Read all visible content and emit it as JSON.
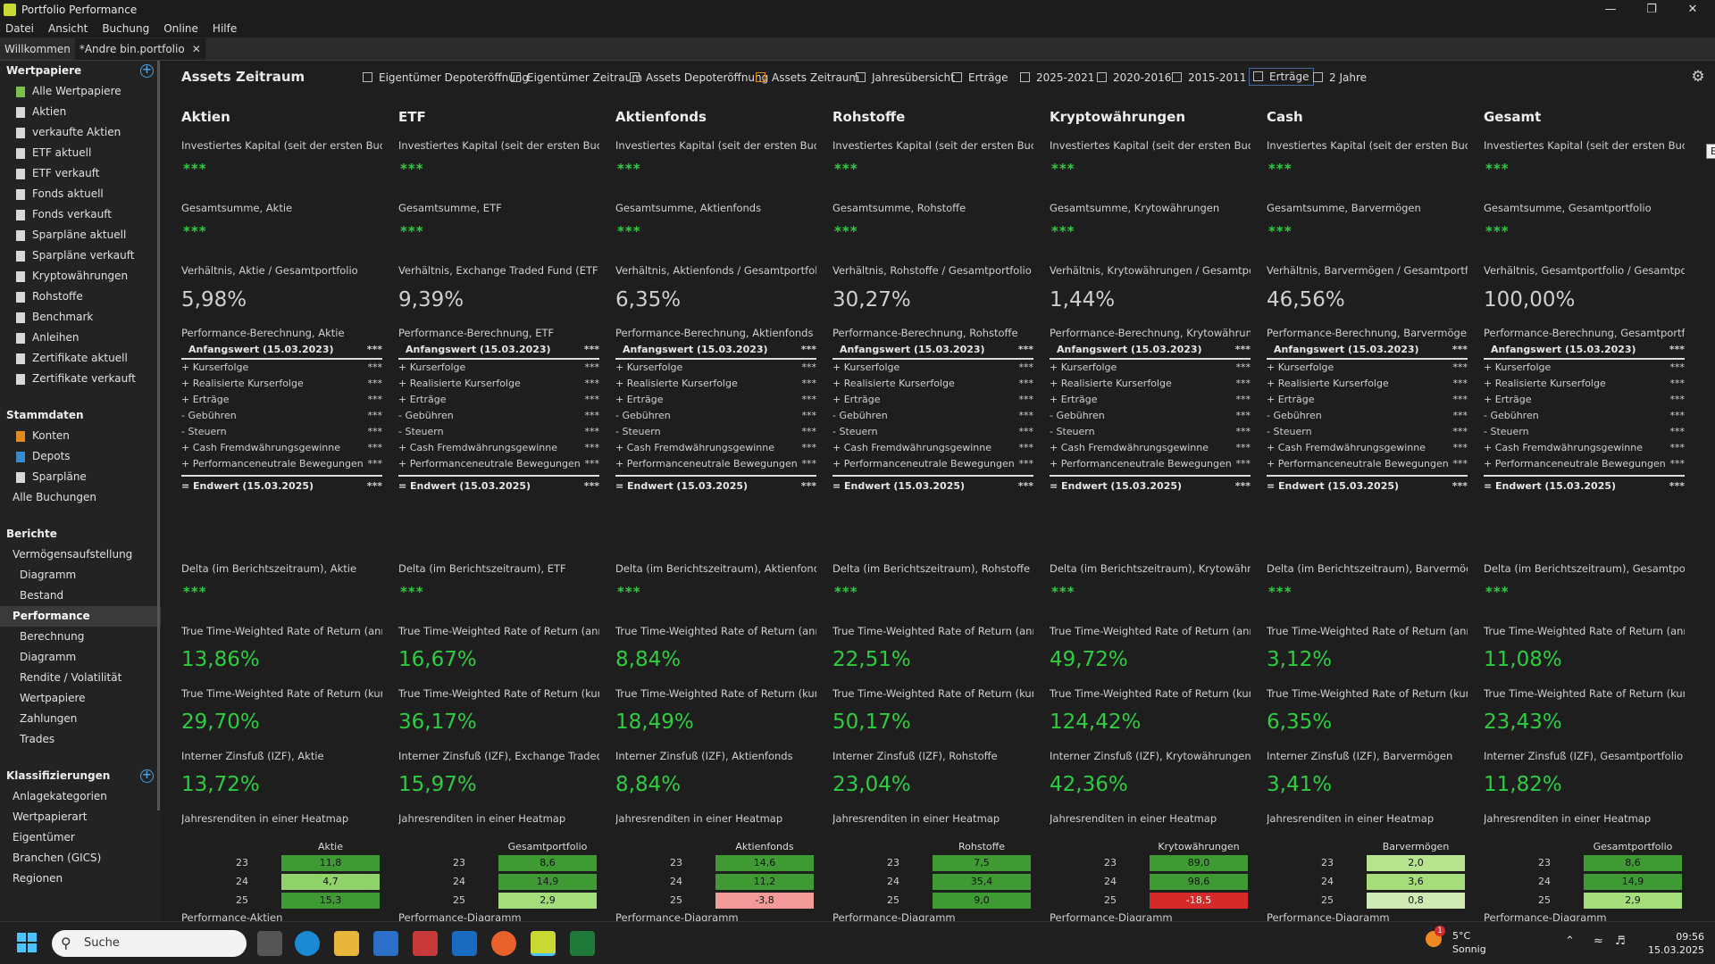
{
  "window": {
    "title": "Portfolio Performance"
  },
  "menu": [
    "Datei",
    "Ansicht",
    "Buchung",
    "Online",
    "Hilfe"
  ],
  "tabs": [
    {
      "label": "Willkommen"
    },
    {
      "label": "*Andre bin.portfolio"
    }
  ],
  "sidebar": {
    "wertpapiere_title": "Wertpapiere",
    "wertpapiere": [
      "Alle Wertpapiere",
      "Aktien",
      "verkaufte Aktien",
      "ETF aktuell",
      "ETF verkauft",
      "Fonds aktuell",
      "Fonds verkauft",
      "Sparpläne aktuell",
      "Sparpläne verkauft",
      "Kryptowährungen",
      "Rohstoffe",
      "Benchmark",
      "Anleihen",
      "Zertifikate aktuell",
      "Zertifikate verkauft"
    ],
    "stammdaten_title": "Stammdaten",
    "stammdaten": [
      "Konten",
      "Depots",
      "Sparpläne",
      "Alle Buchungen"
    ],
    "berichte_title": "Berichte",
    "berichte": [
      "Vermögensaufstellung",
      "Diagramm",
      "Bestand",
      "Performance",
      "Berechnung",
      "Diagramm",
      "Rendite / Volatilität",
      "Wertpapiere",
      "Zahlungen",
      "Trades"
    ],
    "klass_title": "Klassifizierungen",
    "klass": [
      "Anlagekategorien",
      "Wertpapierart",
      "Eigentümer",
      "Branchen (GICS)",
      "Regionen"
    ]
  },
  "view": {
    "title": "Assets Zeitraum",
    "tabs": [
      "Eigentümer Depoteröffnung",
      "Eigentümer Zeitraum",
      "Assets Depoteröffnung",
      "Assets Zeitraum",
      "Jahresübersicht",
      "Erträge",
      "2025-2021",
      "2020-2016",
      "2015-2011",
      "Erträge",
      "2 Jahre"
    ],
    "tooltip": "Erträge"
  },
  "common": {
    "stars": "***",
    "perf_start": "Anfangswert (15.03.2023)",
    "perf_end": "= Endwert (15.03.2025)",
    "perf_rows": [
      "+ Kurserfolge",
      "+ Realisierte Kurserfolge",
      "+ Erträge",
      "- Gebühren",
      "- Steuern",
      "+ Cash Fremdwährungsgewinne",
      "+ Performanceneutrale Bewegungen"
    ],
    "twror_annual": "True Time-Weighted Rate of Return (annualisiert)",
    "twror_cum": "True Time-Weighted Rate of Return (kumuliert)",
    "heatmap_label": "Jahresrenditen in einer Heatmap",
    "years": [
      "23",
      "24",
      "25"
    ],
    "axis_year": "2024"
  },
  "columns": [
    {
      "head": "Aktien",
      "invest": "Investiertes Kapital (seit der ersten Buchung)",
      "total": "Gesamtsumme, Aktie",
      "ratio_label": "Verhältnis, Aktie / Gesamtportfolio",
      "ratio": "5,98%",
      "perf_label": "Performance-Berechnung, Aktie",
      "delta": "Delta (im Berichtszeitraum), Aktie",
      "ttwror_a": "13,86%",
      "ttwror_c": "29,70%",
      "izf_label": "Interner Zinsfuß (IZF), Aktie",
      "izf": "13,72%",
      "hm_head": "Aktie",
      "hm": [
        "11,8",
        "4,7",
        "15,3"
      ],
      "hm_colors": [
        "#3f9a34",
        "#8fd36a",
        "#3f9a34"
      ],
      "chart_label": "Performance-Aktien"
    },
    {
      "head": "ETF",
      "invest": "Investiertes Kapital (seit der ersten Buchung)",
      "total": "Gesamtsumme, ETF",
      "ratio_label": "Verhältnis, Exchange Traded Fund (ETF) / Gesamtportfolio",
      "ratio": "9,39%",
      "perf_label": "Performance-Berechnung, ETF",
      "delta": "Delta (im Berichtszeitraum), ETF",
      "ttwror_a": "16,67%",
      "ttwror_c": "36,17%",
      "izf_label": "Interner Zinsfuß (IZF), Exchange Traded Fund",
      "izf": "15,97%",
      "hm_head": "Gesamtportfolio",
      "hm": [
        "8,6",
        "14,9",
        "2,9"
      ],
      "hm_colors": [
        "#3f9a34",
        "#3f9a34",
        "#a5dd7a"
      ],
      "chart_label": "Performance-Diagramm"
    },
    {
      "head": "Aktienfonds",
      "invest": "Investiertes Kapital (seit der ersten Buchung)",
      "total": "Gesamtsumme, Aktienfonds",
      "ratio_label": "Verhältnis, Aktienfonds / Gesamtportfolio",
      "ratio": "6,35%",
      "perf_label": "Performance-Berechnung, Aktienfonds",
      "delta": "Delta (im Berichtszeitraum), Aktienfonds",
      "ttwror_a": "8,84%",
      "ttwror_c": "18,49%",
      "izf_label": "Interner Zinsfuß (IZF), Aktienfonds",
      "izf": "8,84%",
      "hm_head": "Aktienfonds",
      "hm": [
        "14,6",
        "11,2",
        "-3,8"
      ],
      "hm_colors": [
        "#3f9a34",
        "#3f9a34",
        "#f29a9a"
      ],
      "chart_label": "Performance-Diagramm"
    },
    {
      "head": "Rohstoffe",
      "invest": "Investiertes Kapital (seit der ersten Buchung)",
      "total": "Gesamtsumme, Rohstoffe",
      "ratio_label": "Verhältnis, Rohstoffe / Gesamtportfolio",
      "ratio": "30,27%",
      "perf_label": "Performance-Berechnung, Rohstoffe",
      "delta": "Delta (im Berichtszeitraum), Rohstoffe",
      "ttwror_a": "22,51%",
      "ttwror_c": "50,17%",
      "izf_label": "Interner Zinsfuß (IZF), Rohstoffe",
      "izf": "23,04%",
      "hm_head": "Rohstoffe",
      "hm": [
        "7,5",
        "35,4",
        "9,0"
      ],
      "hm_colors": [
        "#3f9a34",
        "#3f9a34",
        "#3f9a34"
      ],
      "chart_label": "Performance-Diagramm"
    },
    {
      "head": "Kryptowährungen",
      "invest": "Investiertes Kapital (seit der ersten Buchung)",
      "total": "Gesamtsumme, Krytowährungen",
      "ratio_label": "Verhältnis, Krytowährungen / Gesamtportfolio",
      "ratio": "1,44%",
      "perf_label": "Performance-Berechnung, Krytowährungen",
      "delta": "Delta (im Berichtszeitraum), Krytowährungen",
      "ttwror_a": "49,72%",
      "ttwror_c": "124,42%",
      "izf_label": "Interner Zinsfuß (IZF), Krytowährungen",
      "izf": "42,36%",
      "hm_head": "Krytowährungen",
      "hm": [
        "89,0",
        "98,6",
        "-18,5"
      ],
      "hm_colors": [
        "#3f9a34",
        "#3f9a34",
        "#d42a2a"
      ],
      "chart_label": "Performance-Diagramm"
    },
    {
      "head": "Cash",
      "invest": "Investiertes Kapital (seit der ersten Buchung)",
      "total": "Gesamtsumme, Barvermögen",
      "ratio_label": "Verhältnis, Barvermögen / Gesamtportfolio",
      "ratio": "46,56%",
      "perf_label": "Performance-Berechnung, Barvermögen",
      "delta": "Delta (im Berichtszeitraum), Barvermögen",
      "ttwror_a": "3,12%",
      "ttwror_c": "6,35%",
      "izf_label": "Interner Zinsfuß (IZF), Barvermögen",
      "izf": "3,41%",
      "hm_head": "Barvermögen",
      "hm": [
        "2,0",
        "3,6",
        "0,8"
      ],
      "hm_colors": [
        "#b6e38e",
        "#a5dd7a",
        "#cfeab4"
      ],
      "chart_label": "Performance-Diagramm"
    },
    {
      "head": "Gesamt",
      "invest": "Investiertes Kapital (seit der ersten Buchung)",
      "total": "Gesamtsumme, Gesamtportfolio",
      "ratio_label": "Verhältnis, Gesamtportfolio / Gesamtportfolio",
      "ratio": "100,00%",
      "perf_label": "Performance-Berechnung, Gesamtportfolio",
      "delta": "Delta (im Berichtszeitraum), Gesamtportfolio",
      "ttwror_a": "11,08%",
      "ttwror_c": "23,43%",
      "izf_label": "Interner Zinsfuß (IZF), Gesamtportfolio",
      "izf": "11,82%",
      "hm_head": "Gesamtportfolio",
      "hm": [
        "8,6",
        "14,9",
        "2,9"
      ],
      "hm_colors": [
        "#3f9a34",
        "#3f9a34",
        "#a5dd7a"
      ],
      "chart_label": "Performance-Diagramm"
    }
  ],
  "mini_chart_colors": [
    "#e08a20",
    "#e07070",
    "#d4d400",
    "#33cc33",
    "#e0208a",
    "#c8c800",
    "#c8e000"
  ],
  "taskbar": {
    "search": "Suche",
    "temp": "5°C",
    "weather": "Sonnig",
    "time": "09:56",
    "date": "15.03.2025",
    "badge": "1"
  },
  "colors": {
    "value_green": "#2ecc40",
    "accent": "#e08a20"
  }
}
